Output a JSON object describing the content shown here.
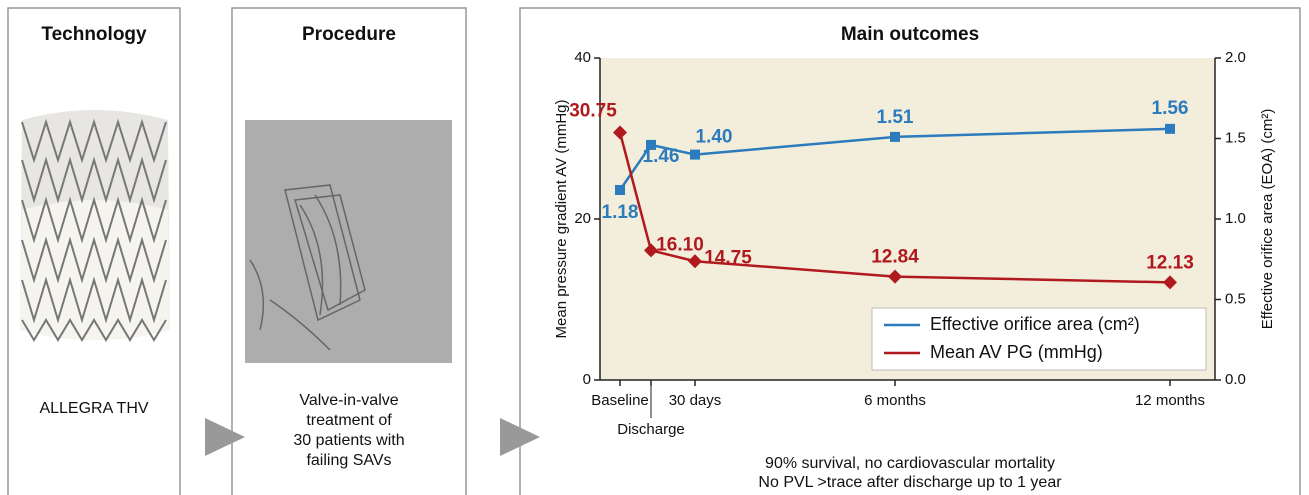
{
  "panels": [
    {
      "title": "Technology",
      "caption": [
        "ALLEGRA THV"
      ]
    },
    {
      "title": "Procedure",
      "caption": [
        "Valve-in-valve",
        "treatment of",
        "30 patients with",
        "failing SAVs"
      ]
    }
  ],
  "chart_data": {
    "type": "line",
    "title": "Main outcomes",
    "categories": [
      "Baseline",
      "Discharge",
      "30 days",
      "6 months",
      "12 months"
    ],
    "ylabel": "Mean pressure gradient AV (mmHg)",
    "y2label": "Effective orifice area (EOA) (cm²)",
    "ylim": [
      0,
      40
    ],
    "yticks": [
      0,
      20,
      40
    ],
    "y2lim": [
      0,
      2
    ],
    "y2ticks": [
      {
        "value": 0,
        "label": "0.0"
      },
      0.5,
      {
        "value": 1,
        "label": "1.0"
      },
      1.5,
      {
        "value": 2,
        "label": "2.0"
      }
    ],
    "plot_background": "#f3eedc",
    "legend": "lower right",
    "series": [
      {
        "name": "Effective orifice area (cm²)",
        "color": "#2b7bbd",
        "axis": "y2",
        "marker": "square",
        "values": [
          1.18,
          1.46,
          1.4,
          1.51,
          1.56
        ],
        "value_labels": [
          "1.18",
          "1.46",
          "1.40",
          "1.51",
          "1.56"
        ]
      },
      {
        "name": "Mean AV PG (mmHg)",
        "color": "#b0191e",
        "axis": "y",
        "marker": "diamond",
        "values": [
          30.75,
          16.1,
          14.75,
          12.84,
          12.13
        ],
        "value_labels": [
          "30.75",
          "16.10",
          "14.75",
          "12.84",
          "12.13"
        ]
      }
    ],
    "notes": [
      "90% survival, no cardiovascular mortality",
      "No PVL >trace after discharge up to 1 year"
    ]
  }
}
